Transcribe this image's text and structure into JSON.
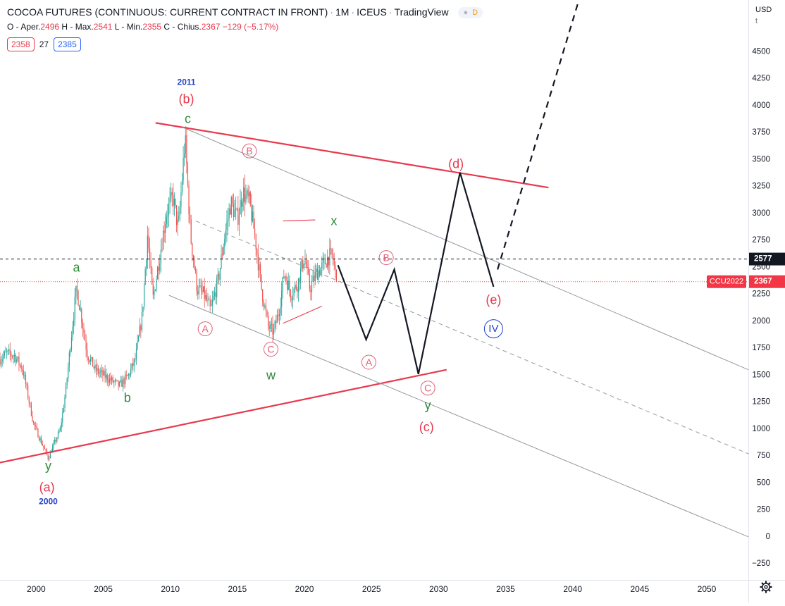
{
  "header": {
    "title": "COCOA FUTURES (CONTINUOUS: CURRENT CONTRACT IN FRONT)",
    "interval": "1M",
    "exchange": "ICEUS",
    "source": "TradingView",
    "badge": "D",
    "ohlc": {
      "open_label": "O - Aper.",
      "open": "2496",
      "high_label": "H - Max.",
      "high": "2541",
      "low_label": "L - Min.",
      "low": "2355",
      "close_label": "C - Chius.",
      "close": "2367",
      "change": "−129 (−5.17%)"
    },
    "bid": "2358",
    "spread": "27",
    "ask": "2385"
  },
  "currency": "USD",
  "currency_sub": "t",
  "colors": {
    "up": "#26a69a",
    "down": "#ef5350",
    "pattern_red": "#e8394d",
    "wave_green": "#2e8b3a",
    "year_blue": "#2343c7",
    "projection": "#131722"
  },
  "price_labels": {
    "crosshair": "2577",
    "symbol": "CCU2022",
    "last": "2367"
  },
  "settings_icon": "gear-icon",
  "chart_data": {
    "type": "candlestick",
    "title": "COCOA FUTURES (CONTINUOUS: CURRENT CONTRACT IN FRONT)",
    "interval": "1M",
    "x_range": [
      1997.3,
      2053.1
    ],
    "ylim": [
      -400,
      4980
    ],
    "x_ticks": [
      2000,
      2005,
      2010,
      2015,
      2020,
      2025,
      2030,
      2035,
      2040,
      2045,
      2050
    ],
    "y_ticks": [
      -250,
      0,
      250,
      500,
      750,
      1000,
      1250,
      1500,
      1750,
      2000,
      2250,
      2500,
      2750,
      3000,
      3250,
      3500,
      3750,
      4000,
      4250,
      4500,
      4750
    ],
    "price_path": [
      [
        1997.3,
        1650
      ],
      [
        1997.8,
        1700
      ],
      [
        1998.4,
        1680
      ],
      [
        1999.0,
        1550
      ],
      [
        1999.4,
        1300
      ],
      [
        1999.8,
        1050
      ],
      [
        2000.3,
        900
      ],
      [
        2000.9,
        730
      ],
      [
        2001.3,
        850
      ],
      [
        2001.8,
        1000
      ],
      [
        2002.2,
        1350
      ],
      [
        2002.6,
        1850
      ],
      [
        2003.0,
        2300
      ],
      [
        2003.3,
        2100
      ],
      [
        2003.8,
        1700
      ],
      [
        2004.4,
        1550
      ],
      [
        2005.0,
        1500
      ],
      [
        2005.6,
        1450
      ],
      [
        2006.2,
        1400
      ],
      [
        2006.9,
        1500
      ],
      [
        2007.4,
        1650
      ],
      [
        2007.9,
        2050
      ],
      [
        2008.3,
        2800
      ],
      [
        2008.7,
        2200
      ],
      [
        2009.2,
        2600
      ],
      [
        2009.7,
        3000
      ],
      [
        2010.2,
        3150
      ],
      [
        2010.6,
        2850
      ],
      [
        2011.1,
        3700
      ],
      [
        2011.5,
        2800
      ],
      [
        2012.0,
        2300
      ],
      [
        2012.5,
        2250
      ],
      [
        2013.0,
        2100
      ],
      [
        2013.6,
        2400
      ],
      [
        2014.0,
        2750
      ],
      [
        2014.5,
        3100
      ],
      [
        2015.0,
        2950
      ],
      [
        2015.4,
        3200
      ],
      [
        2015.9,
        3100
      ],
      [
        2016.3,
        2800
      ],
      [
        2016.8,
        2300
      ],
      [
        2017.3,
        1950
      ],
      [
        2017.7,
        1900
      ],
      [
        2018.1,
        2100
      ],
      [
        2018.5,
        2450
      ],
      [
        2019.0,
        2250
      ],
      [
        2019.5,
        2350
      ],
      [
        2020.0,
        2600
      ],
      [
        2020.4,
        2300
      ],
      [
        2020.9,
        2450
      ],
      [
        2021.3,
        2500
      ],
      [
        2021.8,
        2600
      ],
      [
        2022.1,
        2600
      ],
      [
        2022.4,
        2367
      ]
    ],
    "last_close": 2367,
    "crosshair_price": 2577,
    "symbol_label": "CCU2022",
    "annotations": {
      "trendlines": [
        {
          "x": [
            2008.9,
            2038.2
          ],
          "y": [
            3840,
            3240
          ],
          "color": "red"
        },
        {
          "x": [
            1996.2,
            2030.6
          ],
          "y": [
            660,
            1550
          ],
          "color": "red"
        },
        {
          "x": [
            2010.9,
            2053.1
          ],
          "y": [
            3800,
            1550
          ],
          "color": "gray"
        },
        {
          "x": [
            2009.9,
            2053.1
          ],
          "y": [
            2240,
            0
          ],
          "color": "gray"
        },
        {
          "x": [
            2011.9,
            2053.1
          ],
          "y": [
            2930,
            770
          ],
          "color": "gray",
          "dashed": true
        },
        {
          "x": [
            2018.4,
            2020.8
          ],
          "y": [
            2930,
            2940
          ],
          "color": "red",
          "thin": true
        },
        {
          "x": [
            2018.4,
            2021.3
          ],
          "y": [
            1980,
            2140
          ],
          "color": "red",
          "thin": true
        }
      ],
      "projection": [
        [
          2022.5,
          2520
        ],
        [
          2024.6,
          1830
        ],
        [
          2026.7,
          2480
        ],
        [
          2028.5,
          1510
        ],
        [
          2031.6,
          3380
        ],
        [
          2034.1,
          2320
        ]
      ],
      "projection_breakout": [
        [
          2034.4,
          2480
        ],
        [
          2041.0,
          5200
        ]
      ],
      "wave_labels": [
        {
          "text": "(b)",
          "x": 2011.2,
          "y": 4060,
          "color": "red"
        },
        {
          "text": "c",
          "x": 2011.3,
          "y": 3880,
          "color": "green"
        },
        {
          "text": "2011",
          "x": 2011.2,
          "y": 4220,
          "color": "blue"
        },
        {
          "text": "B",
          "x": 2015.9,
          "y": 3580,
          "color": "pink",
          "circled": true
        },
        {
          "text": "(d)",
          "x": 2031.3,
          "y": 3460,
          "color": "red"
        },
        {
          "text": "x",
          "x": 2022.2,
          "y": 2930,
          "color": "green"
        },
        {
          "text": "B",
          "x": 2026.1,
          "y": 2590,
          "color": "pink",
          "circled": true
        },
        {
          "text": "a",
          "x": 2003.0,
          "y": 2500,
          "color": "green"
        },
        {
          "text": "(e)",
          "x": 2034.1,
          "y": 2200,
          "color": "red"
        },
        {
          "text": "A",
          "x": 2012.6,
          "y": 1930,
          "color": "pink",
          "circled": true
        },
        {
          "text": "IV",
          "x": 2034.1,
          "y": 1930,
          "color": "blue",
          "circled": true
        },
        {
          "text": "C",
          "x": 2017.5,
          "y": 1740,
          "color": "pink",
          "circled": true
        },
        {
          "text": "A",
          "x": 2024.8,
          "y": 1620,
          "color": "pink",
          "circled": true
        },
        {
          "text": "w",
          "x": 2017.5,
          "y": 1500,
          "color": "green"
        },
        {
          "text": "b",
          "x": 2006.8,
          "y": 1290,
          "color": "green"
        },
        {
          "text": "C",
          "x": 2029.2,
          "y": 1380,
          "color": "pink",
          "circled": true
        },
        {
          "text": "y",
          "x": 2029.2,
          "y": 1220,
          "color": "green"
        },
        {
          "text": "(c)",
          "x": 2029.1,
          "y": 1020,
          "color": "red"
        },
        {
          "text": "y",
          "x": 2000.9,
          "y": 660,
          "color": "green"
        },
        {
          "text": "(a)",
          "x": 2000.8,
          "y": 460,
          "color": "red"
        },
        {
          "text": "2000",
          "x": 2000.9,
          "y": 330,
          "color": "blue"
        }
      ]
    }
  }
}
